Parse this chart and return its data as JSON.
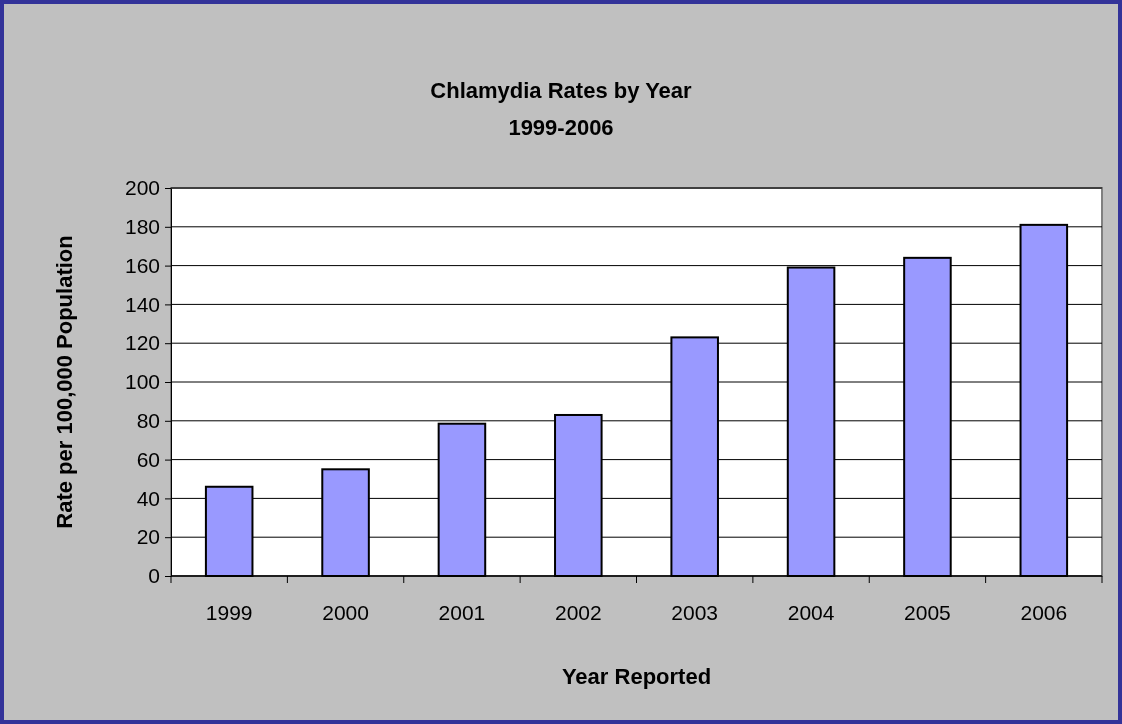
{
  "chart_data": {
    "type": "bar",
    "title": "Chlamydia Rates by Year",
    "subtitle": "1999-2006",
    "xlabel": "Year Reported",
    "ylabel": "Rate per 100,000 Population",
    "categories": [
      "1999",
      "2000",
      "2001",
      "2002",
      "2003",
      "2004",
      "2005",
      "2006"
    ],
    "values": [
      46,
      55,
      78.5,
      83,
      123,
      159,
      164,
      181
    ],
    "color": "#9999ff",
    "ylim": [
      0,
      200
    ],
    "yticks": [
      0,
      20,
      40,
      60,
      80,
      100,
      120,
      140,
      160,
      180,
      200
    ],
    "grid": "y"
  }
}
